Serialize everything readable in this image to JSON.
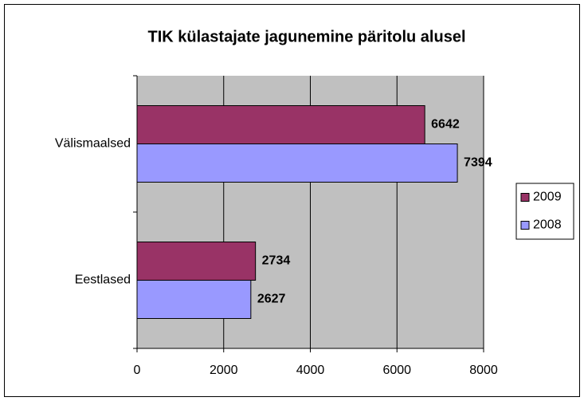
{
  "chart_data": {
    "type": "barh",
    "title": "TIK külastajate jagunemine päritolu alusel",
    "categories": [
      "Välismaalsed",
      "Eestlased"
    ],
    "series": [
      {
        "name": "2009",
        "color": "#993366",
        "values": [
          6642,
          2734
        ]
      },
      {
        "name": "2008",
        "color": "#9999ff",
        "values": [
          7394,
          2627
        ]
      }
    ],
    "xlim": [
      0,
      8000
    ],
    "xticks": [
      0,
      2000,
      4000,
      6000,
      8000
    ],
    "grid": true,
    "legend": "right"
  }
}
